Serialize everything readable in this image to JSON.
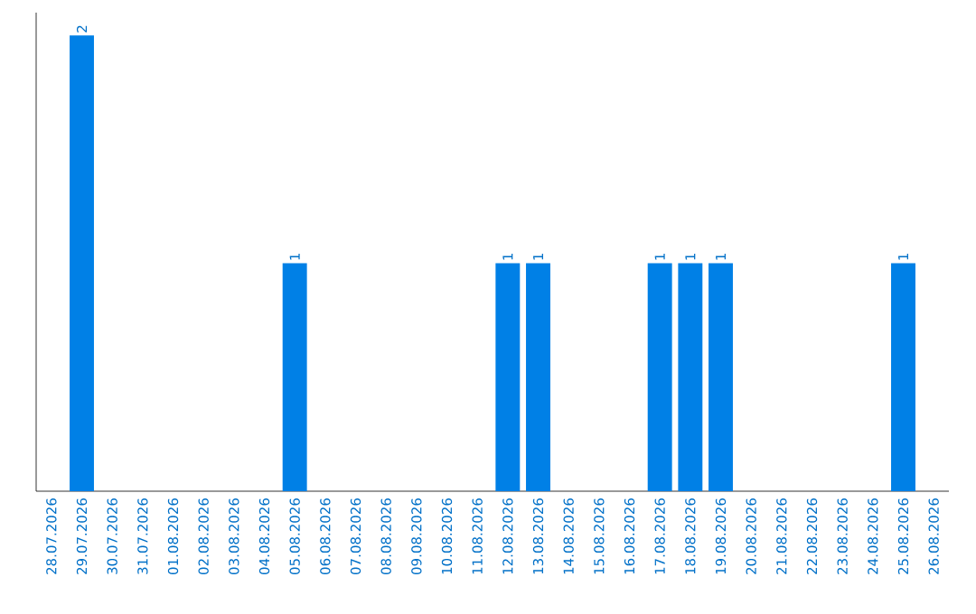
{
  "chart_data": {
    "type": "bar",
    "categories": [
      "28.07.2026",
      "29.07.2026",
      "30.07.2026",
      "31.07.2026",
      "01.08.2026",
      "02.08.2026",
      "03.08.2026",
      "04.08.2026",
      "05.08.2026",
      "06.08.2026",
      "07.08.2026",
      "08.08.2026",
      "09.08.2026",
      "10.08.2026",
      "11.08.2026",
      "12.08.2026",
      "13.08.2026",
      "14.08.2026",
      "15.08.2026",
      "16.08.2026",
      "17.08.2026",
      "18.08.2026",
      "19.08.2026",
      "20.08.2026",
      "21.08.2026",
      "22.08.2026",
      "23.08.2026",
      "24.08.2026",
      "25.08.2026",
      "26.08.2026"
    ],
    "values": [
      0,
      2,
      0,
      0,
      0,
      0,
      0,
      0,
      1,
      0,
      0,
      0,
      0,
      0,
      0,
      1,
      1,
      0,
      0,
      0,
      1,
      1,
      1,
      0,
      0,
      0,
      0,
      0,
      1,
      0
    ],
    "value_labels": [
      null,
      "2",
      null,
      null,
      null,
      null,
      null,
      null,
      "1",
      null,
      null,
      null,
      null,
      null,
      null,
      "1",
      "1",
      null,
      null,
      null,
      "1",
      "1",
      "1",
      null,
      null,
      null,
      null,
      null,
      "1",
      null
    ],
    "color": "#0080e6",
    "ylim": [
      0,
      2.1
    ],
    "tick_labels": "x"
  }
}
